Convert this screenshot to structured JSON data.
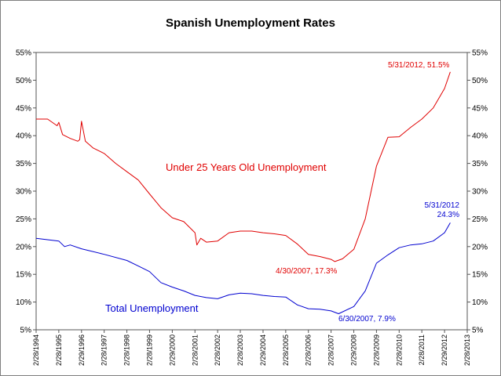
{
  "chart_data": {
    "type": "line",
    "title": "Spanish Unemployment Rates",
    "y_ticks": [
      "55%",
      "50%",
      "45%",
      "40%",
      "35%",
      "30%",
      "25%",
      "20%",
      "15%",
      "10%",
      "5%"
    ],
    "ylim": [
      5,
      55
    ],
    "x_ticks": [
      "2/28/1994",
      "2/28/1995",
      "2/29/1996",
      "2/28/1997",
      "2/28/1998",
      "2/28/1999",
      "2/29/2000",
      "2/28/2001",
      "2/28/2002",
      "2/28/2003",
      "2/29/2004",
      "2/28/2005",
      "2/28/2006",
      "2/28/2007",
      "2/29/2008",
      "2/28/2009",
      "2/28/2010",
      "2/28/2011",
      "2/29/2012",
      "2/28/2013"
    ],
    "xlim": [
      "1994-02-28",
      "2013-02-28"
    ],
    "grid": false,
    "series": [
      {
        "name": "Under 25 Years Old Unemployment",
        "color": "#e00000",
        "x": [
          "1994-02-28",
          "1994-08-31",
          "1995-01-31",
          "1995-02-28",
          "1995-04-30",
          "1995-08-31",
          "1995-12-31",
          "1996-01-31",
          "1996-02-29",
          "1996-04-30",
          "1996-08-31",
          "1997-02-28",
          "1997-08-31",
          "1998-02-28",
          "1998-08-31",
          "1999-02-28",
          "1999-08-31",
          "2000-02-29",
          "2000-08-31",
          "2001-02-28",
          "2001-03-31",
          "2001-05-31",
          "2001-08-31",
          "2002-02-28",
          "2002-08-31",
          "2003-02-28",
          "2003-08-31",
          "2004-02-29",
          "2004-08-31",
          "2005-02-28",
          "2005-08-31",
          "2006-02-28",
          "2006-08-31",
          "2007-02-28",
          "2007-04-30",
          "2007-08-31",
          "2008-02-29",
          "2008-08-31",
          "2009-02-28",
          "2009-08-31",
          "2010-02-28",
          "2010-08-31",
          "2011-02-28",
          "2011-08-31",
          "2012-02-29",
          "2012-05-31"
        ],
        "y": [
          43.0,
          43.0,
          41.8,
          42.4,
          40.2,
          39.5,
          39.0,
          39.3,
          42.6,
          39.0,
          37.8,
          36.8,
          35.0,
          33.5,
          32.0,
          29.5,
          27.0,
          25.2,
          24.5,
          22.5,
          20.3,
          21.5,
          20.8,
          21.0,
          22.5,
          22.8,
          22.8,
          22.5,
          22.3,
          22.0,
          20.5,
          18.6,
          18.2,
          17.7,
          17.3,
          17.8,
          19.5,
          25.0,
          34.5,
          39.7,
          39.8,
          41.5,
          43.0,
          45.0,
          48.5,
          51.5
        ]
      },
      {
        "name": "Total Unemployment",
        "color": "#0000d0",
        "x": [
          "1994-02-28",
          "1995-02-28",
          "1995-05-31",
          "1995-08-31",
          "1996-02-29",
          "1997-02-28",
          "1998-02-28",
          "1998-08-31",
          "1999-02-28",
          "1999-08-31",
          "2000-02-29",
          "2000-08-31",
          "2001-02-28",
          "2001-08-31",
          "2002-02-28",
          "2002-08-31",
          "2003-02-28",
          "2003-08-31",
          "2004-02-29",
          "2004-08-31",
          "2005-02-28",
          "2005-08-31",
          "2006-02-28",
          "2006-08-31",
          "2007-02-28",
          "2007-06-30",
          "2008-02-29",
          "2008-08-31",
          "2009-02-28",
          "2009-08-31",
          "2010-02-28",
          "2010-08-31",
          "2011-02-28",
          "2011-08-31",
          "2012-02-29",
          "2012-05-31"
        ],
        "y": [
          21.5,
          21.0,
          20.0,
          20.3,
          19.6,
          18.6,
          17.5,
          16.5,
          15.5,
          13.5,
          12.7,
          12.0,
          11.2,
          10.8,
          10.6,
          11.3,
          11.6,
          11.5,
          11.2,
          11.0,
          10.9,
          9.5,
          8.8,
          8.7,
          8.4,
          7.9,
          9.2,
          12.0,
          17.0,
          18.5,
          19.8,
          20.3,
          20.5,
          21.0,
          22.5,
          24.3
        ]
      }
    ],
    "annotations": [
      {
        "text": "5/31/2012, 51.5%",
        "color": "red"
      },
      {
        "text": "Under 25 Years Old Unemployment",
        "color": "red"
      },
      {
        "text": "4/30/2007, 17.3%",
        "color": "red"
      },
      {
        "text": "5/31/2012",
        "color": "blue"
      },
      {
        "text": "24.3%",
        "color": "blue"
      },
      {
        "text": "Total Unemployment",
        "color": "blue"
      },
      {
        "text": "6/30/2007, 7.9%",
        "color": "blue"
      }
    ]
  }
}
